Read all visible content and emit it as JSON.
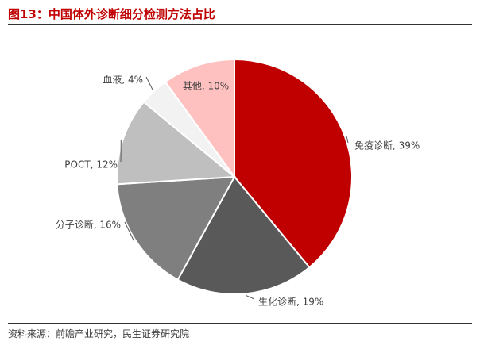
{
  "figure": {
    "title": "图13：中国体外诊断细分检测方法占比",
    "source": "资料来源：前瞻产业研究，民生证券研究院"
  },
  "chart_data": {
    "type": "pie",
    "title": "图13：中国体外诊断细分检测方法占比",
    "start_angle_deg": 0,
    "direction": "clockwise",
    "slices": [
      {
        "label": "免疫诊断, 39%",
        "name": "免疫诊断",
        "value": 39,
        "color": "#c00000"
      },
      {
        "label": "生化诊断, 19%",
        "name": "生化诊断",
        "value": 19,
        "color": "#595959"
      },
      {
        "label": "分子诊断, 16%",
        "name": "分子诊断",
        "value": 16,
        "color": "#7f7f7f"
      },
      {
        "label": "POCT, 12%",
        "name": "POCT",
        "value": 12,
        "color": "#bfbfbf"
      },
      {
        "label": "血液, 4%",
        "name": "血液",
        "value": 4,
        "color": "#f2f2f2"
      },
      {
        "label": "其他, 10%",
        "name": "其他",
        "value": 10,
        "color": "#ffc0c0"
      }
    ]
  }
}
